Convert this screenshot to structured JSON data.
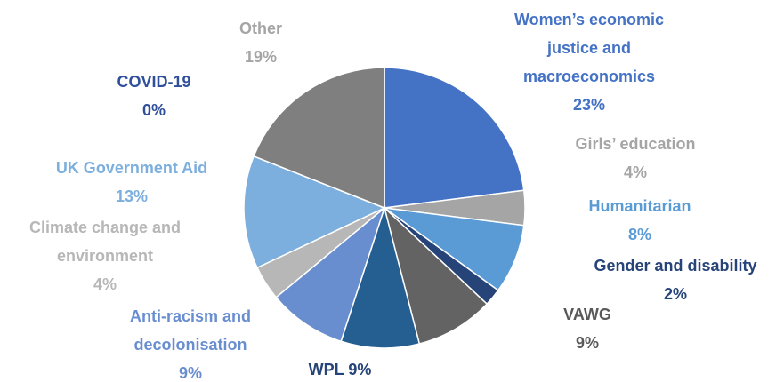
{
  "chart_data": {
    "type": "pie",
    "categories": [
      "Women’s economic justice and macroeconomics",
      "Girls’ education",
      "Humanitarian",
      "Gender and disability",
      "VAWG",
      "WPL",
      "Anti-racism and decolonisation",
      "Climate change and environment",
      "UK Government Aid",
      "COVID-19",
      "Other"
    ],
    "values": [
      23,
      4,
      8,
      2,
      9,
      9,
      9,
      4,
      13,
      0,
      19
    ],
    "value_labels": [
      "23%",
      "4%",
      "8%",
      "2%",
      "9%",
      "9%",
      "9%",
      "4%",
      "13%",
      "0%",
      "19%"
    ],
    "colors": [
      "#4472c4",
      "#a5a5a5",
      "#5b9bd5",
      "#264478",
      "#636363",
      "#255e91",
      "#698ed0",
      "#b7b7b7",
      "#7cafdd",
      "#1f3864",
      "#7f7f7f"
    ]
  }
}
